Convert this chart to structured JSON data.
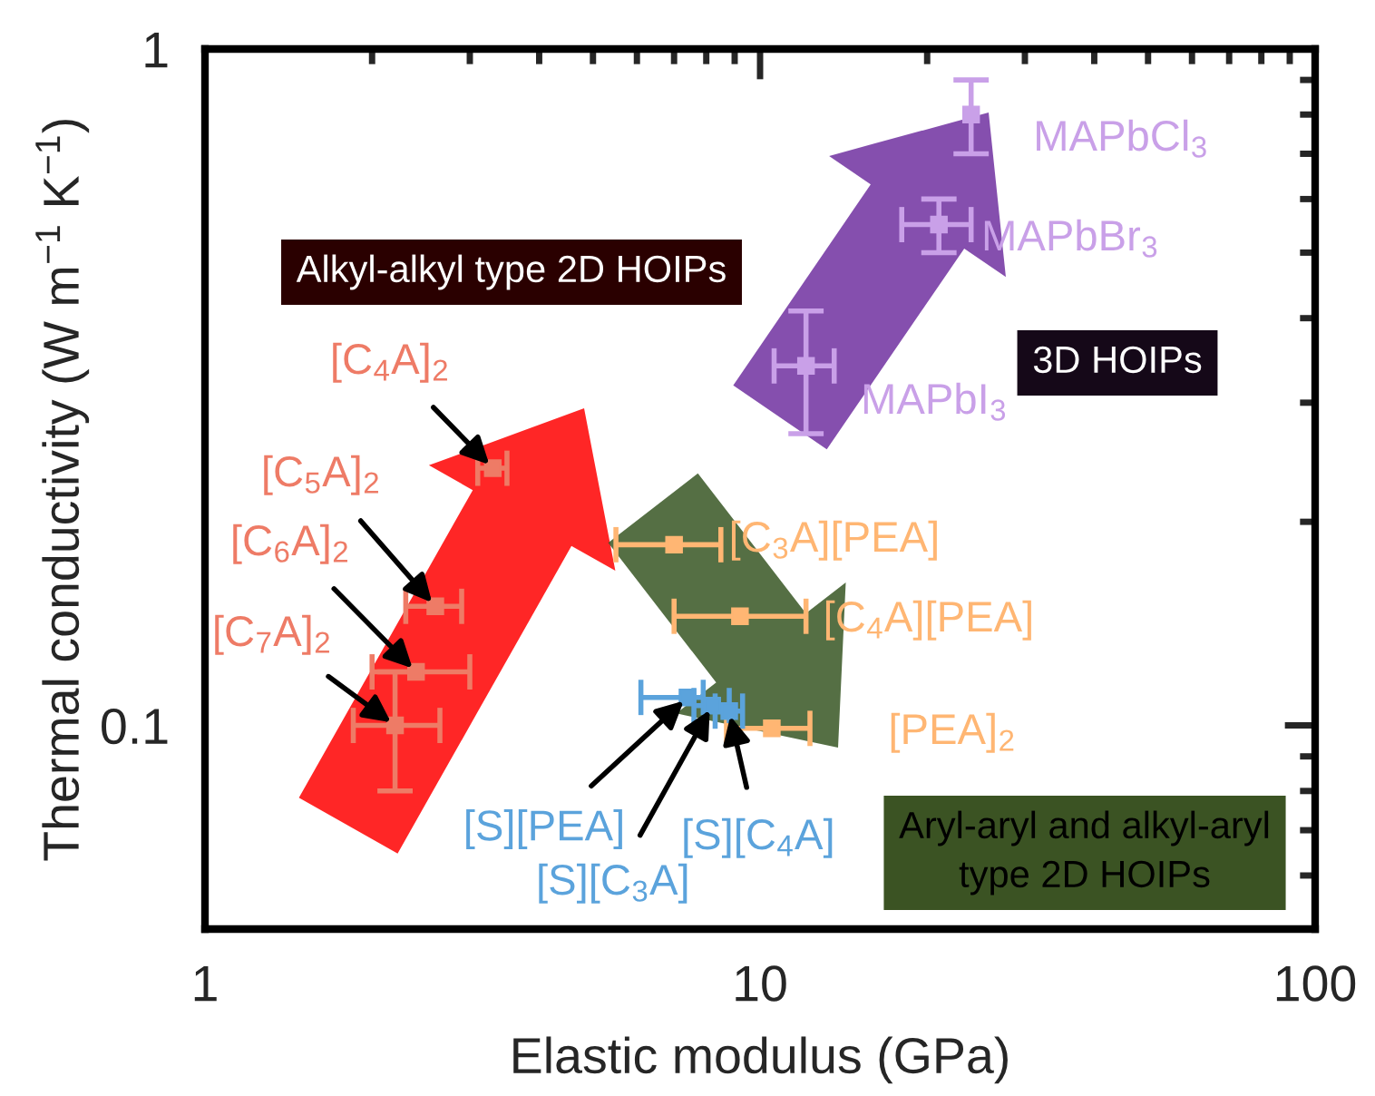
{
  "chart_data": {
    "type": "scatter",
    "xlabel": "Elastic modulus (GPa)",
    "ylabel": "Thermal conductivity (W m$^{−1}$ K$^{−1}$)",
    "log": "xy",
    "xlim": [
      1,
      100
    ],
    "ylim": [
      0.05,
      1
    ],
    "xticks": [
      1,
      10,
      100
    ],
    "yticks": [
      0.1,
      1
    ],
    "marker": "square",
    "series": [
      {
        "name": "[C$_{4}$A]$_{2}$",
        "color": "#ee7b66",
        "x": [
          3.3
        ],
        "values": [
          0.24
        ],
        "xerrors": [
          0.2
        ]
      },
      {
        "name": "[C$_{5}$A]$_{2}$",
        "color": "#ee7b66",
        "x": [
          2.6
        ],
        "values": [
          0.15
        ],
        "xerrors": [
          0.3
        ]
      },
      {
        "name": "[C$_{6}$A]$_{2}$",
        "color": "#ee7b66",
        "x": [
          2.4
        ],
        "values": [
          0.12
        ],
        "xerrors": [
          [
            2.0,
            3.0
          ]
        ]
      },
      {
        "name": "[C$_{7}$A]$_{2}$",
        "color": "#ee7b66",
        "x": [
          2.2
        ],
        "values": [
          0.1
        ],
        "xerrors": [
          [
            1.85,
            2.65
          ]
        ],
        "errors": [
          0.02
        ]
      },
      {
        "name": "[C$_{3}$A][PEA]",
        "color": "#ffb673",
        "x": [
          7.0
        ],
        "values": [
          0.185
        ],
        "xerrors": [
          1.5
        ]
      },
      {
        "name": "[C$_{4}$A][PEA]",
        "color": "#ffb673",
        "x": [
          9.2
        ],
        "values": [
          0.145
        ],
        "xerrors": [
          [
            7.0,
            12.1
          ]
        ]
      },
      {
        "name": "[PEA]$_{2}$",
        "color": "#ffb673",
        "x": [
          10.5
        ],
        "values": [
          0.099
        ],
        "xerrors": [
          1.8
        ]
      },
      {
        "name": "[S][PEA]",
        "color": "#5ba3dc",
        "x": [
          7.4
        ],
        "values": [
          0.11
        ],
        "xerrors": [
          [
            6.1,
            7.9
          ]
        ]
      },
      {
        "name": "[S][C$_{3}$A]",
        "color": "#5ba3dc",
        "x": [
          8.2
        ],
        "values": [
          0.107
        ],
        "xerrors": [
          0.6
        ]
      },
      {
        "name": "[S][C$_{4}$A]",
        "color": "#5ba3dc",
        "x": [
          8.8
        ],
        "values": [
          0.105
        ],
        "xerrors": [
          0.5
        ]
      },
      {
        "name": "MAPbCl$_{3}$",
        "color": "#c9a0e8",
        "x": [
          24
        ],
        "values": [
          0.8
        ],
        "errors": [
          0.1
        ]
      },
      {
        "name": "MAPbBr$_{3}$",
        "color": "#c9a0e8",
        "x": [
          21
        ],
        "values": [
          0.55
        ],
        "errors": [
          0.05
        ],
        "xerrors": [
          3
        ]
      },
      {
        "name": "MAPbI$_{3}$",
        "color": "#c9a0e8",
        "x": [
          12.1
        ],
        "values": [
          0.34
        ],
        "errors": [
          0.07
        ],
        "xerrors": [
          1.5
        ]
      }
    ],
    "annotations": [
      "Alkyl-alkyl type 2D HOIPs",
      "3D HOIPs",
      "Aryl-aryl and alkyl-aryl\ntype 2D HOIPs"
    ]
  }
}
